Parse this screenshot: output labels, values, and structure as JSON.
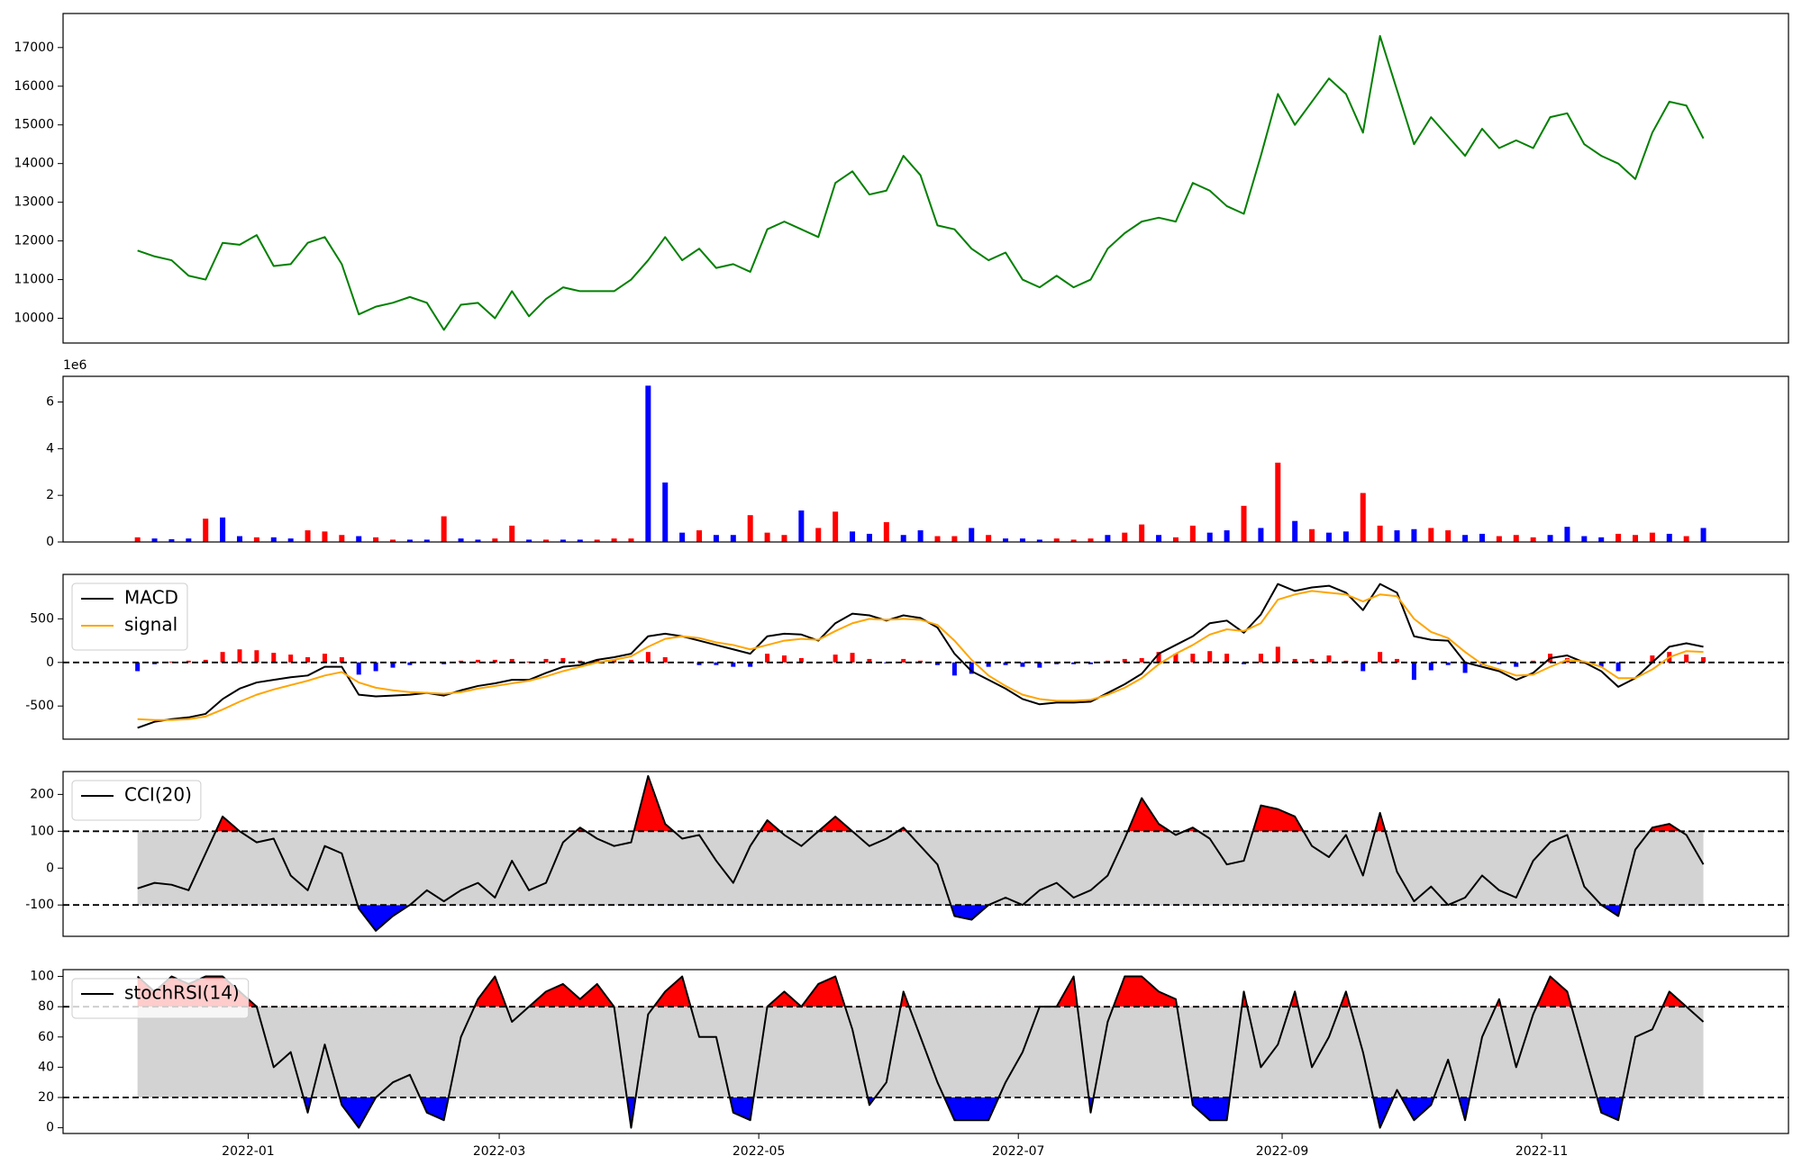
{
  "chart_data": [
    {
      "type": "line",
      "color": "green",
      "x": [
        -26,
        -22,
        -18,
        -14,
        -10,
        -6,
        -2,
        2,
        6,
        10,
        14,
        18,
        22,
        26,
        30,
        34,
        38,
        42,
        46,
        50,
        54,
        58,
        62,
        66,
        70,
        74,
        78,
        82,
        86,
        90,
        94,
        98,
        102,
        106,
        110,
        114,
        118,
        122,
        126,
        130,
        134,
        138,
        142,
        146,
        150,
        154,
        158,
        162,
        166,
        170,
        174,
        178,
        182,
        186,
        190,
        194,
        198,
        202,
        206,
        210,
        214,
        218,
        222,
        226,
        230,
        234,
        238,
        242,
        246,
        250,
        254,
        258,
        262,
        266,
        270,
        274,
        278,
        282,
        286,
        290,
        294,
        298,
        302,
        306,
        310,
        314,
        318,
        322,
        326,
        330,
        334,
        338,
        342
      ],
      "values": [
        11750,
        11600,
        11500,
        11100,
        11000,
        11950,
        11900,
        12150,
        11350,
        11400,
        11950,
        12100,
        11400,
        10100,
        10300,
        10400,
        10550,
        10400,
        9700,
        10350,
        10400,
        10000,
        10700,
        10050,
        10500,
        10800,
        10700,
        10700,
        10700,
        11000,
        11500,
        12100,
        11500,
        11800,
        11300,
        11400,
        11200,
        12300,
        12500,
        12300,
        12100,
        13500,
        13800,
        13200,
        13300,
        14200,
        13700,
        12400,
        12300,
        11800,
        11500,
        11700,
        11000,
        10800,
        11100,
        10800,
        11000,
        11800,
        12200,
        12500,
        12600,
        12500,
        13500,
        13300,
        12900,
        12700,
        14200,
        15800,
        15000,
        15600,
        16200,
        15800,
        14800,
        17300,
        15900,
        14500,
        15200,
        14700,
        14200,
        14900,
        14400,
        14600,
        14400,
        15200,
        15300,
        14500,
        14200,
        14000,
        13600,
        14800,
        15600,
        15500,
        14650
      ],
      "xlim": [
        -43.5,
        362
      ],
      "ylim": [
        9360,
        17880
      ],
      "yticks": [
        10000,
        11000,
        12000,
        13000,
        14000,
        15000,
        16000,
        17000
      ]
    },
    {
      "type": "bar",
      "offset_label": "1e6",
      "values": [
        0.2,
        0.15,
        0.12,
        0.15,
        1.0,
        1.05,
        0.25,
        0.2,
        0.2,
        0.15,
        0.5,
        0.45,
        0.3,
        0.25,
        0.2,
        0.1,
        0.1,
        0.1,
        1.1,
        0.15,
        0.1,
        0.15,
        0.7,
        0.1,
        0.1,
        0.1,
        0.1,
        0.1,
        0.15,
        0.15,
        6.7,
        2.55,
        0.4,
        0.5,
        0.3,
        0.3,
        1.15,
        0.4,
        0.3,
        1.35,
        0.6,
        1.3,
        0.45,
        0.35,
        0.85,
        0.3,
        0.5,
        0.25,
        0.25,
        0.6,
        0.3,
        0.15,
        0.15,
        0.1,
        0.15,
        0.1,
        0.15,
        0.3,
        0.4,
        0.75,
        0.3,
        0.2,
        0.7,
        0.4,
        0.5,
        1.55,
        0.6,
        3.4,
        0.9,
        0.55,
        0.4,
        0.45,
        2.1,
        0.7,
        0.5,
        0.55,
        0.6,
        0.5,
        0.3,
        0.35,
        0.25,
        0.3,
        0.2,
        0.3,
        0.65,
        0.25,
        0.2,
        0.35,
        0.3,
        0.4,
        0.35,
        0.25,
        0.6
      ],
      "colors": [
        "red",
        "blue",
        "blue",
        "blue",
        "red",
        "blue",
        "blue",
        "red",
        "blue",
        "blue",
        "red",
        "red",
        "red",
        "blue",
        "red",
        "red",
        "blue",
        "blue",
        "red",
        "blue",
        "blue",
        "red",
        "red",
        "blue",
        "red",
        "blue",
        "blue",
        "red",
        "red",
        "red",
        "blue",
        "blue",
        "blue",
        "red",
        "blue",
        "blue",
        "red",
        "red",
        "red",
        "blue",
        "red",
        "red",
        "blue",
        "blue",
        "red",
        "blue",
        "blue",
        "red",
        "red",
        "blue",
        "red",
        "blue",
        "blue",
        "blue",
        "red",
        "red",
        "red",
        "blue",
        "red",
        "red",
        "blue",
        "red",
        "red",
        "blue",
        "blue",
        "red",
        "blue",
        "red",
        "blue",
        "red",
        "blue",
        "blue",
        "red",
        "red",
        "blue",
        "blue",
        "red",
        "red",
        "blue",
        "blue",
        "red",
        "red",
        "red",
        "blue",
        "blue",
        "blue",
        "blue",
        "red",
        "red",
        "red",
        "blue",
        "red",
        "blue"
      ],
      "ylim": [
        0,
        7.1
      ],
      "yticks": [
        0,
        2,
        4,
        6
      ]
    },
    {
      "type": "line",
      "legend": "upper left",
      "series": [
        {
          "name": "MACD",
          "color": "black",
          "values": [
            -750,
            -680,
            -650,
            -630,
            -590,
            -420,
            -300,
            -230,
            -200,
            -170,
            -150,
            -50,
            -50,
            -370,
            -390,
            -380,
            -370,
            -350,
            -380,
            -320,
            -270,
            -240,
            -200,
            -200,
            -120,
            -50,
            -30,
            30,
            60,
            100,
            300,
            330,
            300,
            250,
            200,
            150,
            100,
            300,
            330,
            320,
            250,
            450,
            560,
            540,
            480,
            540,
            510,
            400,
            100,
            -100,
            -200,
            -300,
            -420,
            -480,
            -460,
            -460,
            -450,
            -350,
            -250,
            -130,
            100,
            200,
            300,
            450,
            480,
            340,
            550,
            900,
            820,
            860,
            880,
            800,
            600,
            900,
            800,
            300,
            260,
            250,
            0,
            -50,
            -100,
            -200,
            -120,
            50,
            80,
            0,
            -100,
            -280,
            -180,
            0,
            180,
            220,
            180
          ]
        },
        {
          "name": "signal",
          "color": "orange",
          "values": [
            -650,
            -660,
            -660,
            -650,
            -620,
            -540,
            -450,
            -370,
            -310,
            -260,
            -210,
            -150,
            -110,
            -230,
            -290,
            -320,
            -340,
            -350,
            -360,
            -340,
            -300,
            -270,
            -240,
            -210,
            -160,
            -100,
            -50,
            0,
            30,
            70,
            180,
            270,
            300,
            280,
            230,
            200,
            150,
            200,
            250,
            270,
            260,
            360,
            450,
            500,
            490,
            500,
            490,
            430,
            250,
            30,
            -150,
            -270,
            -370,
            -420,
            -440,
            -440,
            -430,
            -370,
            -290,
            -180,
            -20,
            100,
            200,
            320,
            380,
            360,
            450,
            720,
            780,
            820,
            800,
            780,
            700,
            780,
            760,
            500,
            350,
            280,
            120,
            -20,
            -80,
            -150,
            -140,
            -50,
            30,
            10,
            -50,
            -180,
            -180,
            -80,
            60,
            130,
            120
          ]
        }
      ],
      "histogram": {
        "positive_color": "red",
        "negative_color": "blue",
        "values": [
          -100,
          -20,
          10,
          20,
          30,
          120,
          150,
          140,
          110,
          90,
          60,
          100,
          60,
          -140,
          -100,
          -60,
          -30,
          0,
          -20,
          20,
          30,
          30,
          40,
          10,
          40,
          50,
          20,
          30,
          30,
          30,
          120,
          60,
          0,
          -30,
          -30,
          -50,
          -50,
          100,
          80,
          50,
          -10,
          90,
          110,
          40,
          -10,
          40,
          20,
          -30,
          -150,
          -130,
          -50,
          -30,
          -50,
          -60,
          -20,
          -20,
          -20,
          20,
          40,
          50,
          120,
          100,
          100,
          130,
          100,
          -20,
          100,
          180,
          40,
          40,
          80,
          20,
          -100,
          120,
          40,
          -200,
          -90,
          -30,
          -120,
          -30,
          -20,
          -50,
          20,
          100,
          50,
          -10,
          -50,
          -100,
          0,
          80,
          120,
          90,
          60
        ]
      },
      "hlines": [
        0
      ],
      "ylim": [
        -880,
        1010
      ],
      "yticks": [
        -500,
        0,
        500
      ]
    },
    {
      "type": "line",
      "legend": "upper left",
      "series": [
        {
          "name": "CCI(20)",
          "color": "black",
          "values": [
            -55,
            -40,
            -45,
            -60,
            40,
            140,
            100,
            70,
            80,
            -20,
            -60,
            60,
            40,
            -110,
            -170,
            -130,
            -100,
            -60,
            -90,
            -60,
            -40,
            -80,
            20,
            -60,
            -40,
            70,
            110,
            80,
            60,
            70,
            250,
            120,
            80,
            90,
            20,
            -40,
            60,
            130,
            90,
            60,
            100,
            140,
            100,
            60,
            80,
            110,
            60,
            10,
            -130,
            -140,
            -100,
            -80,
            -100,
            -60,
            -40,
            -80,
            -60,
            -20,
            80,
            190,
            120,
            90,
            110,
            80,
            10,
            20,
            170,
            160,
            140,
            60,
            30,
            90,
            -20,
            150,
            -10,
            -90,
            -50,
            -100,
            -80,
            -20,
            -60,
            -80,
            20,
            70,
            90,
            -50,
            -100,
            -130,
            50,
            110,
            120,
            90,
            10
          ]
        }
      ],
      "hlines": [
        -100,
        100
      ],
      "fill": {
        "above": "red",
        "below": "blue",
        "between": "lightgray"
      },
      "ylim": [
        -185,
        262
      ],
      "yticks": [
        -100,
        0,
        100,
        200
      ]
    },
    {
      "type": "line",
      "legend": "upper left",
      "series": [
        {
          "name": "stochRSI(14)",
          "color": "black",
          "values": [
            100,
            90,
            100,
            95,
            100,
            100,
            90,
            80,
            40,
            50,
            10,
            55,
            15,
            0,
            20,
            30,
            35,
            10,
            5,
            60,
            85,
            100,
            70,
            80,
            90,
            95,
            85,
            95,
            80,
            0,
            75,
            90,
            100,
            60,
            60,
            10,
            5,
            80,
            90,
            80,
            95,
            100,
            65,
            15,
            30,
            90,
            60,
            30,
            5,
            5,
            5,
            30,
            50,
            80,
            80,
            100,
            10,
            70,
            100,
            100,
            90,
            85,
            15,
            5,
            5,
            90,
            40,
            55,
            90,
            40,
            60,
            90,
            50,
            0,
            25,
            5,
            15,
            45,
            5,
            60,
            85,
            40,
            75,
            100,
            90,
            50,
            10,
            5,
            60,
            65,
            90,
            80,
            70
          ]
        }
      ],
      "hlines": [
        20,
        80
      ],
      "fill": {
        "above": "red",
        "below": "blue",
        "between": "lightgray"
      },
      "ylim": [
        -3.8,
        104.5
      ],
      "yticks": [
        0,
        20,
        40,
        60,
        80,
        100
      ],
      "xticks": [
        {
          "value": 0,
          "label": "2022-01"
        },
        {
          "value": 59,
          "label": "2022-03"
        },
        {
          "value": 120,
          "label": "2022-05"
        },
        {
          "value": 181,
          "label": "2022-07"
        },
        {
          "value": 243,
          "label": "2022-09"
        },
        {
          "value": 304,
          "label": "2022-11"
        }
      ]
    }
  ]
}
